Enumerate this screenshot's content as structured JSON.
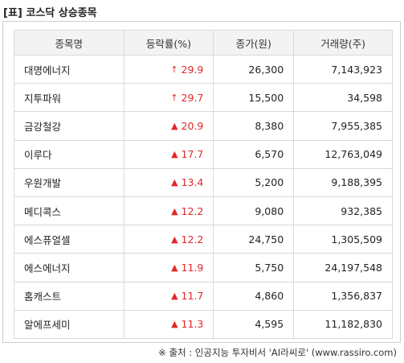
{
  "title": "[표] 코스닥 상승종목",
  "headers": [
    "종목명",
    "등락률(%)",
    "종가(원)",
    "거래량(주)"
  ],
  "rows": [
    {
      "name": "대명에너지",
      "icon": "thin-up-arrow-icon",
      "arrow": "↑",
      "rate": "29.9",
      "close": "26,300",
      "volume": "7,143,923"
    },
    {
      "name": "지투파워",
      "icon": "thin-up-arrow-icon",
      "arrow": "↑",
      "rate": "29.7",
      "close": "15,500",
      "volume": "34,598"
    },
    {
      "name": "금강철강",
      "icon": "up-triangle-icon",
      "arrow": "▲",
      "rate": "20.9",
      "close": "8,380",
      "volume": "7,955,385"
    },
    {
      "name": "이루다",
      "icon": "up-triangle-icon",
      "arrow": "▲",
      "rate": "17.7",
      "close": "6,570",
      "volume": "12,763,049"
    },
    {
      "name": "우원개발",
      "icon": "up-triangle-icon",
      "arrow": "▲",
      "rate": "13.4",
      "close": "5,200",
      "volume": "9,188,395"
    },
    {
      "name": "메디콕스",
      "icon": "up-triangle-icon",
      "arrow": "▲",
      "rate": "12.2",
      "close": "9,080",
      "volume": "932,385"
    },
    {
      "name": "에스퓨얼셀",
      "icon": "up-triangle-icon",
      "arrow": "▲",
      "rate": "12.2",
      "close": "24,750",
      "volume": "1,305,509"
    },
    {
      "name": "에스에너지",
      "icon": "up-triangle-icon",
      "arrow": "▲",
      "rate": "11.9",
      "close": "5,750",
      "volume": "24,197,548"
    },
    {
      "name": "홈캐스트",
      "icon": "up-triangle-icon",
      "arrow": "▲",
      "rate": "11.7",
      "close": "4,860",
      "volume": "1,356,837"
    },
    {
      "name": "알에프세미",
      "icon": "up-triangle-icon",
      "arrow": "▲",
      "rate": "11.3",
      "close": "4,595",
      "volume": "11,182,830"
    }
  ],
  "colors": {
    "up": "#e0282a",
    "header_bg": "#f3f3f3",
    "border": "#d9d9d9"
  },
  "source": "※ 출처 : 인공지능 투자비서 'AI라씨로' (www.rassiro.com)"
}
